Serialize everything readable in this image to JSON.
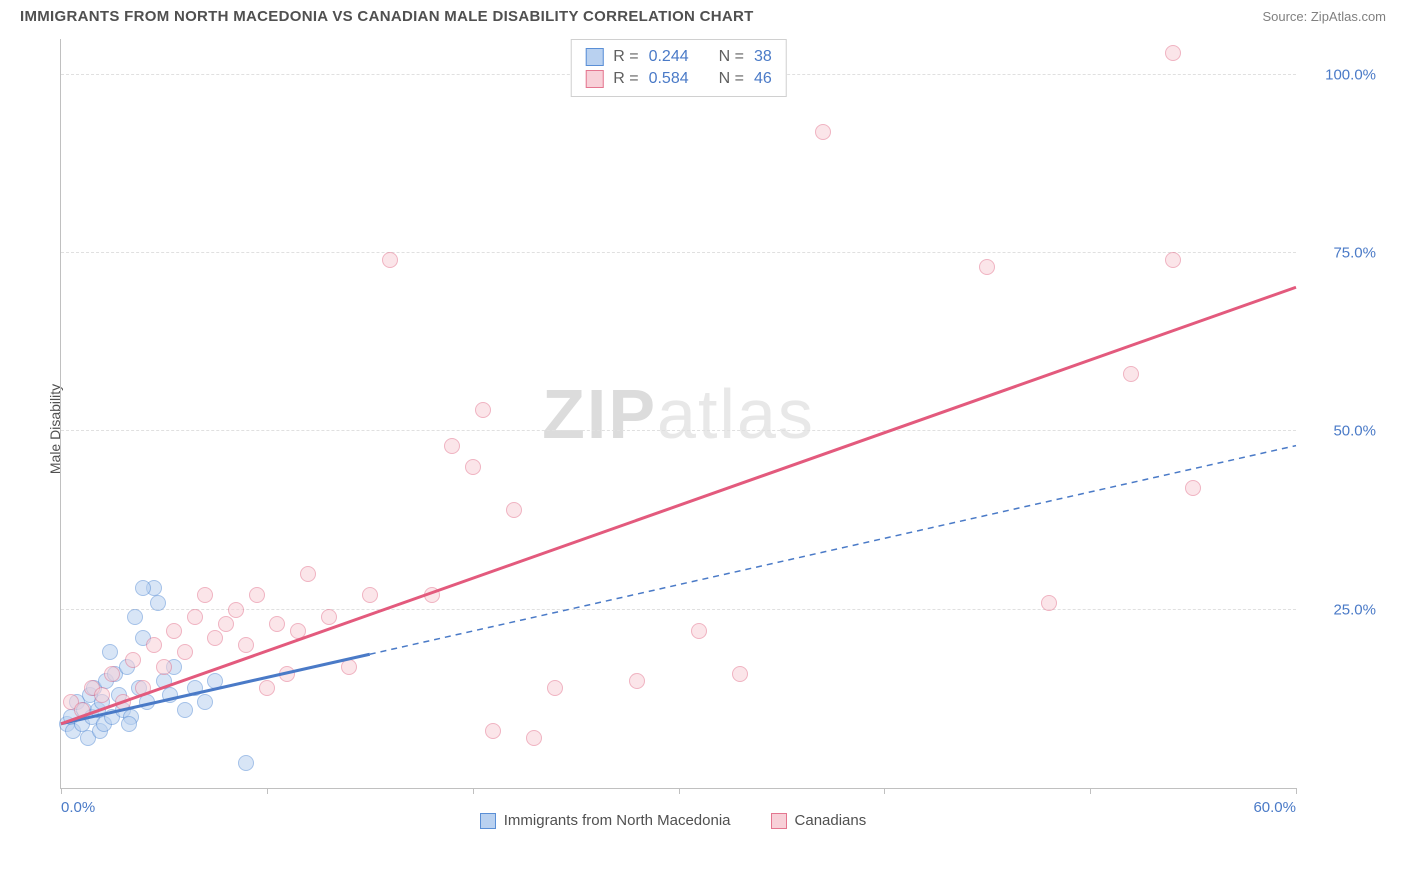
{
  "title": "IMMIGRANTS FROM NORTH MACEDONIA VS CANADIAN MALE DISABILITY CORRELATION CHART",
  "source_label": "Source: ZipAtlas.com",
  "ylabel": "Male Disability",
  "watermark_a": "ZIP",
  "watermark_b": "atlas",
  "chart": {
    "type": "scatter",
    "xlim": [
      0,
      60
    ],
    "ylim": [
      0,
      105
    ],
    "xticks": [
      0,
      10,
      20,
      30,
      40,
      50,
      60
    ],
    "xticks_labeled": {
      "0": "0.0%",
      "60": "60.0%"
    },
    "yticks": [
      25,
      50,
      75,
      100
    ],
    "ytick_labels": [
      "25.0%",
      "50.0%",
      "75.0%",
      "100.0%"
    ],
    "grid_color": "#e0e0e0",
    "axis_color": "#c0c0c0",
    "bg": "#ffffff",
    "point_radius": 8,
    "series": [
      {
        "id": "blue",
        "label": "Immigrants from North Macedonia",
        "color_fill": "#b9d1f0",
        "color_stroke": "#5a8fd6",
        "R": "0.244",
        "N": "38",
        "trend": {
          "slope": 0.65,
          "intercept": 9,
          "x_solid_end": 15,
          "color": "#4a7ac7",
          "width": 3,
          "dash": "6,5"
        },
        "points": [
          [
            0.3,
            9
          ],
          [
            0.5,
            10
          ],
          [
            0.6,
            8
          ],
          [
            0.8,
            12
          ],
          [
            1.0,
            9
          ],
          [
            1.1,
            11
          ],
          [
            1.3,
            7
          ],
          [
            1.4,
            13
          ],
          [
            1.5,
            10
          ],
          [
            1.6,
            14
          ],
          [
            1.8,
            11
          ],
          [
            1.9,
            8
          ],
          [
            2.0,
            12
          ],
          [
            2.1,
            9
          ],
          [
            2.2,
            15
          ],
          [
            2.4,
            19
          ],
          [
            2.5,
            10
          ],
          [
            2.6,
            16
          ],
          [
            2.8,
            13
          ],
          [
            3.0,
            11
          ],
          [
            3.2,
            17
          ],
          [
            3.4,
            10
          ],
          [
            3.6,
            24
          ],
          [
            3.8,
            14
          ],
          [
            4.0,
            21
          ],
          [
            4.2,
            12
          ],
          [
            4.5,
            28
          ],
          [
            4.7,
            26
          ],
          [
            5.0,
            15
          ],
          [
            5.3,
            13
          ],
          [
            5.5,
            17
          ],
          [
            6.0,
            11
          ],
          [
            6.5,
            14
          ],
          [
            7.0,
            12
          ],
          [
            7.5,
            15
          ],
          [
            3.3,
            9
          ],
          [
            9.0,
            3.5
          ],
          [
            4.0,
            28
          ]
        ]
      },
      {
        "id": "pink",
        "label": "Canadians",
        "color_fill": "#f8d0d8",
        "color_stroke": "#e47690",
        "R": "0.584",
        "N": "46",
        "trend": {
          "slope": 1.02,
          "intercept": 9,
          "x_solid_end": 60,
          "color": "#e35a7d",
          "width": 3,
          "dash": null
        },
        "points": [
          [
            0.5,
            12
          ],
          [
            1.0,
            11
          ],
          [
            1.5,
            14
          ],
          [
            2.0,
            13
          ],
          [
            2.5,
            16
          ],
          [
            3.0,
            12
          ],
          [
            3.5,
            18
          ],
          [
            4.0,
            14
          ],
          [
            4.5,
            20
          ],
          [
            5.0,
            17
          ],
          [
            5.5,
            22
          ],
          [
            6.0,
            19
          ],
          [
            6.5,
            24
          ],
          [
            7.0,
            27
          ],
          [
            7.5,
            21
          ],
          [
            8.0,
            23
          ],
          [
            8.5,
            25
          ],
          [
            9.0,
            20
          ],
          [
            9.5,
            27
          ],
          [
            10.0,
            14
          ],
          [
            10.5,
            23
          ],
          [
            11.0,
            16
          ],
          [
            11.5,
            22
          ],
          [
            12.0,
            30
          ],
          [
            13.0,
            24
          ],
          [
            14.0,
            17
          ],
          [
            15.0,
            27
          ],
          [
            16.0,
            74
          ],
          [
            18.0,
            27
          ],
          [
            19.0,
            48
          ],
          [
            20.0,
            45
          ],
          [
            20.5,
            53
          ],
          [
            21.0,
            8
          ],
          [
            22.0,
            39
          ],
          [
            23.0,
            7
          ],
          [
            24.0,
            14
          ],
          [
            28.0,
            15
          ],
          [
            31.0,
            22
          ],
          [
            33.0,
            16
          ],
          [
            37.0,
            92
          ],
          [
            45.0,
            73
          ],
          [
            48.0,
            26
          ],
          [
            52.0,
            58
          ],
          [
            54.0,
            74
          ],
          [
            55.0,
            42
          ],
          [
            54.0,
            103
          ]
        ]
      }
    ]
  },
  "legend_top": {
    "R_label": "R =",
    "N_label": "N ="
  },
  "tick_label_color": "#4a7ac7",
  "axis_text_color": "#505050"
}
